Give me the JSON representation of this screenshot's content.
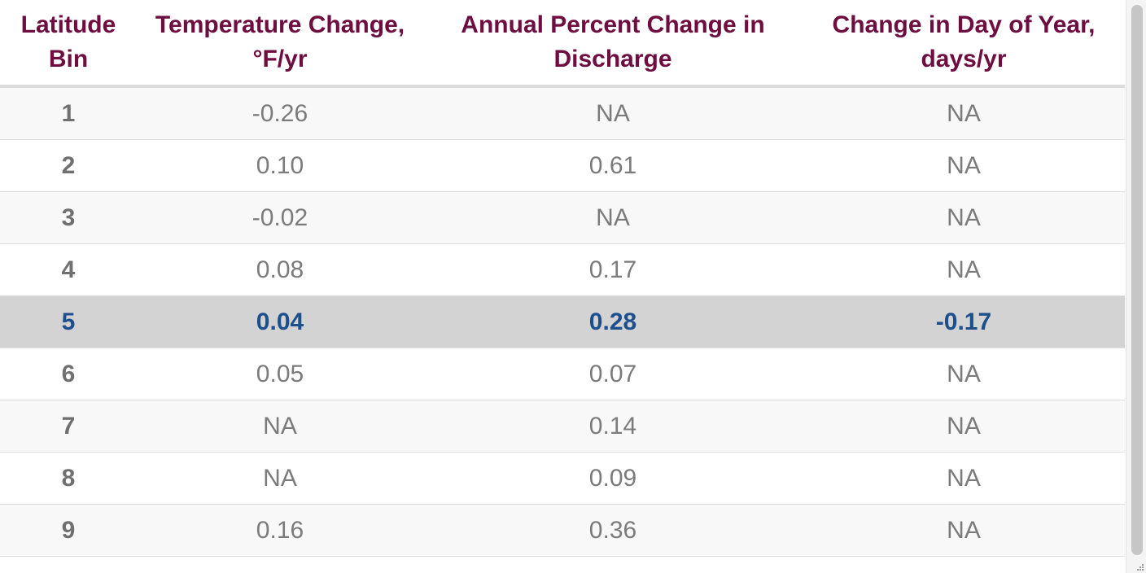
{
  "table": {
    "columns": [
      {
        "line1": "Latitude",
        "line2": "Bin"
      },
      {
        "line1": "Temperature Change,",
        "line2": "°F/yr"
      },
      {
        "line1": "Annual Percent Change in",
        "line2": "Discharge"
      },
      {
        "line1": "Change in Day of Year,",
        "line2": "days/yr"
      }
    ],
    "rows": [
      {
        "bin": "1",
        "temp": "-0.26",
        "discharge": "NA",
        "day": "NA"
      },
      {
        "bin": "2",
        "temp": "0.10",
        "discharge": "0.61",
        "day": "NA"
      },
      {
        "bin": "3",
        "temp": "-0.02",
        "discharge": "NA",
        "day": "NA"
      },
      {
        "bin": "4",
        "temp": "0.08",
        "discharge": "0.17",
        "day": "NA"
      },
      {
        "bin": "5",
        "temp": "0.04",
        "discharge": "0.28",
        "day": "-0.17"
      },
      {
        "bin": "6",
        "temp": "0.05",
        "discharge": "0.07",
        "day": "NA"
      },
      {
        "bin": "7",
        "temp": "NA",
        "discharge": "0.14",
        "day": "NA"
      },
      {
        "bin": "8",
        "temp": "NA",
        "discharge": "0.09",
        "day": "NA"
      },
      {
        "bin": "9",
        "temp": "0.16",
        "discharge": "0.36",
        "day": "NA"
      }
    ]
  },
  "colors": {
    "header_text": "#6e0d3f",
    "highlight_text": "#1d4f8c",
    "highlight_bg": "#d3d3d3",
    "cell_text": "#7b7b7b"
  },
  "icons": {
    "resize_grip": "resize-grip-icon"
  }
}
